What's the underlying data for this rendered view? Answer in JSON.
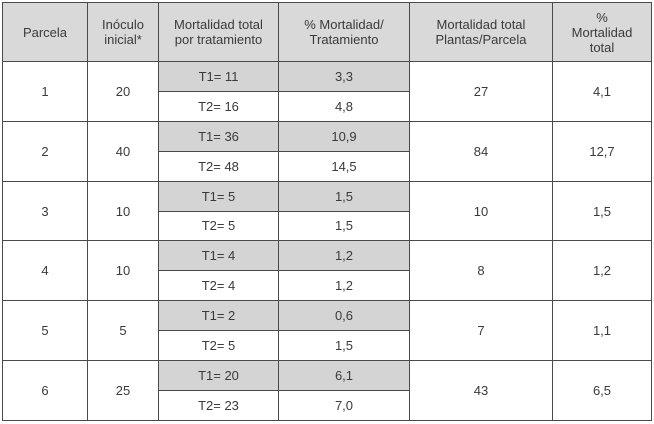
{
  "headers": [
    "Parcela",
    "Inóculo\ninicial*",
    "Mortalidad total\npor tratamiento",
    "% Mortalidad/\nTratamiento",
    "Mortalidad total\nPlantas/Parcela",
    "%\nMortalidad\ntotal"
  ],
  "rows": [
    {
      "parcela": "1",
      "inoculo": "20",
      "t1": "T1= 11",
      "t1_pct": "3,3",
      "t2": "T2= 16",
      "t2_pct": "4,8",
      "total": "27",
      "total_pct": "4,1"
    },
    {
      "parcela": "2",
      "inoculo": "40",
      "t1": "T1= 36",
      "t1_pct": "10,9",
      "t2": "T2= 48",
      "t2_pct": "14,5",
      "total": "84",
      "total_pct": "12,7"
    },
    {
      "parcela": "3",
      "inoculo": "10",
      "t1": "T1= 5",
      "t1_pct": "1,5",
      "t2": "T2= 5",
      "t2_pct": "1,5",
      "total": "10",
      "total_pct": "1,5"
    },
    {
      "parcela": "4",
      "inoculo": "10",
      "t1": "T1= 4",
      "t1_pct": "1,2",
      "t2": "T2= 4",
      "t2_pct": "1,2",
      "total": "8",
      "total_pct": "1,2"
    },
    {
      "parcela": "5",
      "inoculo": "5",
      "t1": "T1= 2",
      "t1_pct": "0,6",
      "t2": "T2= 5",
      "t2_pct": "1,5",
      "total": "7",
      "total_pct": "1,1"
    },
    {
      "parcela": "6",
      "inoculo": "25",
      "t1": "T1= 20",
      "t1_pct": "6,1",
      "t2": "T2= 23",
      "t2_pct": "7,0",
      "total": "43",
      "total_pct": "6,5"
    }
  ],
  "colors": {
    "header_bg": "#d9d9d9",
    "shaded_bg": "#d4d4d4",
    "border": "#4a4a4a",
    "text": "#3a3a3a"
  }
}
